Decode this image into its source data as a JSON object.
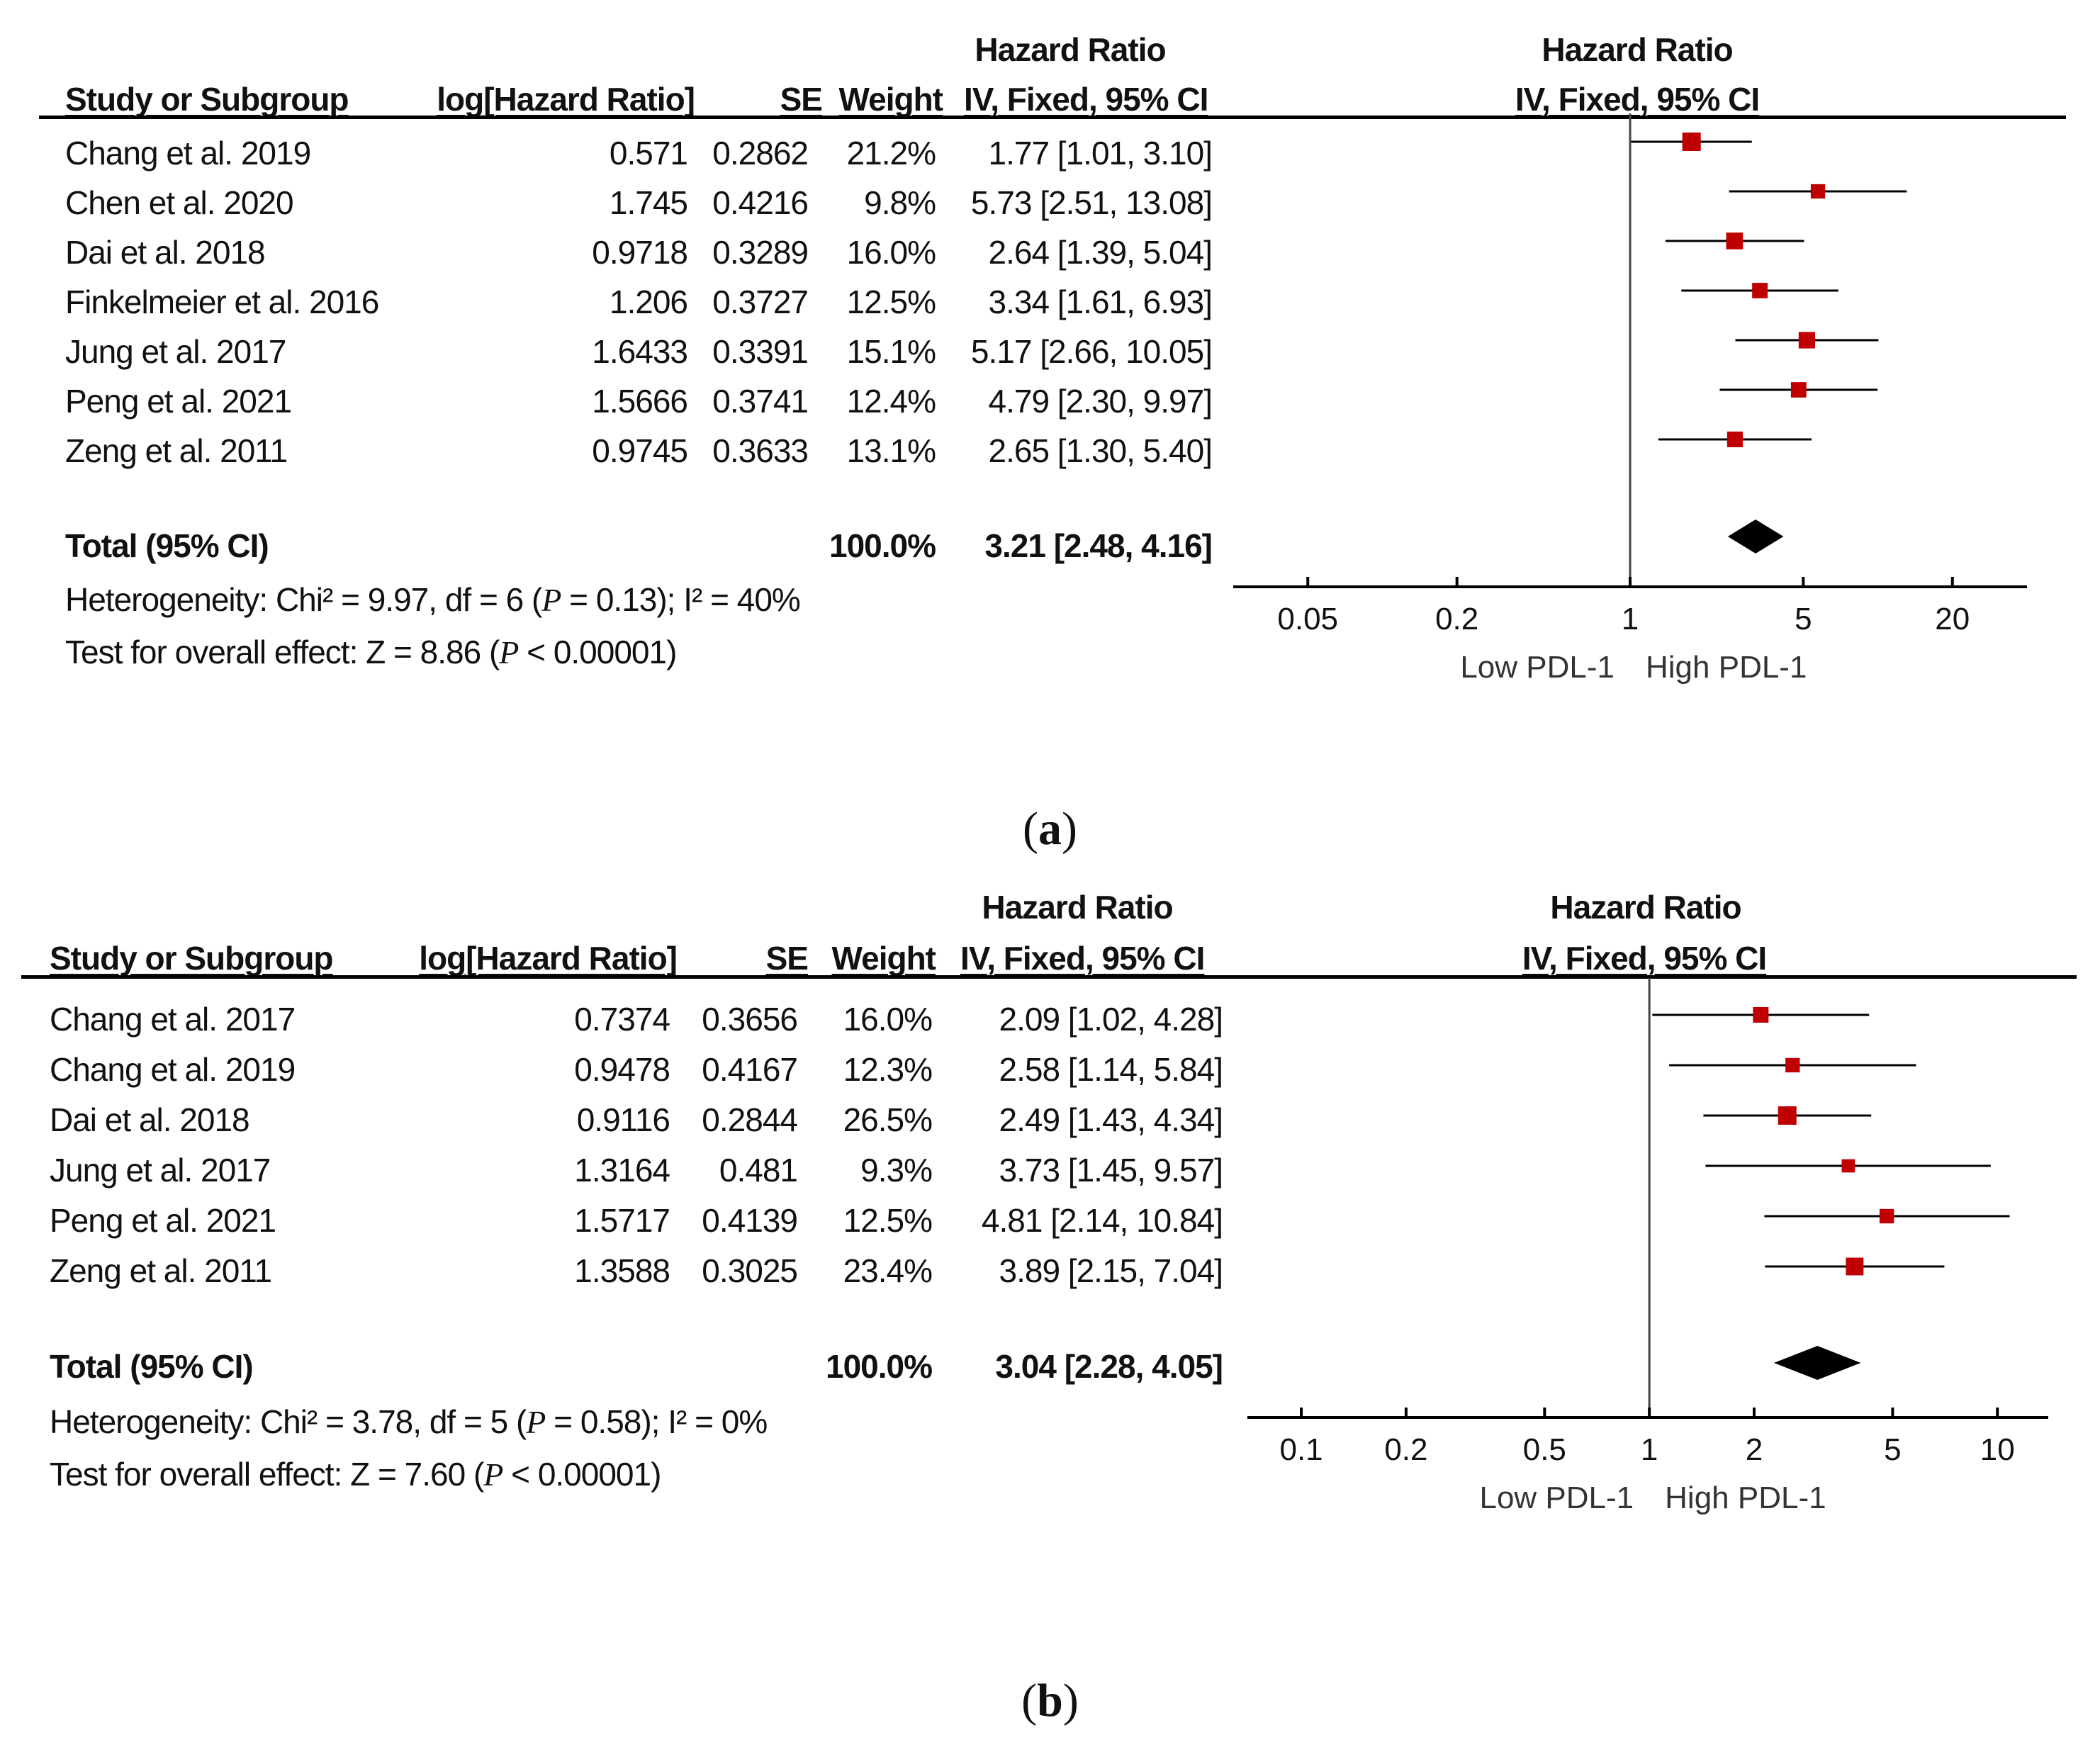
{
  "colors": {
    "marker": "#c00000",
    "ink": "#000000",
    "axis": "#444444"
  },
  "chart_data": [
    {
      "type": "forest",
      "panel_label": "a",
      "columns": {
        "study": "Study or Subgroup",
        "log_hr": "log[Hazard Ratio]",
        "se": "SE",
        "weight": "Weight",
        "hr_top": "Hazard Ratio",
        "hr_sub": "IV, Fixed, 95% CI",
        "plot_top": "Hazard Ratio",
        "plot_sub": "IV, Fixed, 95% CI"
      },
      "studies": [
        {
          "name": "Chang et al. 2019",
          "log_hr": "0.571",
          "se": "0.2862",
          "weight": "21.2%",
          "ci_text": "1.77 [1.01, 3.10]",
          "hr": 1.77,
          "lo": 1.01,
          "hi": 3.1,
          "w": 21.2
        },
        {
          "name": "Chen et al. 2020",
          "log_hr": "1.745",
          "se": "0.4216",
          "weight": "9.8%",
          "ci_text": "5.73 [2.51, 13.08]",
          "hr": 5.73,
          "lo": 2.51,
          "hi": 13.08,
          "w": 9.8
        },
        {
          "name": "Dai et al. 2018",
          "log_hr": "0.9718",
          "se": "0.3289",
          "weight": "16.0%",
          "ci_text": "2.64 [1.39, 5.04]",
          "hr": 2.64,
          "lo": 1.39,
          "hi": 5.04,
          "w": 16.0
        },
        {
          "name": "Finkelmeier et al. 2016",
          "log_hr": "1.206",
          "se": "0.3727",
          "weight": "12.5%",
          "ci_text": "3.34 [1.61, 6.93]",
          "hr": 3.34,
          "lo": 1.61,
          "hi": 6.93,
          "w": 12.5
        },
        {
          "name": "Jung et al. 2017",
          "log_hr": "1.6433",
          "se": "0.3391",
          "weight": "15.1%",
          "ci_text": "5.17 [2.66, 10.05]",
          "hr": 5.17,
          "lo": 2.66,
          "hi": 10.05,
          "w": 15.1
        },
        {
          "name": "Peng et al. 2021",
          "log_hr": "1.5666",
          "se": "0.3741",
          "weight": "12.4%",
          "ci_text": "4.79 [2.30, 9.97]",
          "hr": 4.79,
          "lo": 2.3,
          "hi": 9.97,
          "w": 12.4
        },
        {
          "name": "Zeng et al. 2011",
          "log_hr": "0.9745",
          "se": "0.3633",
          "weight": "13.1%",
          "ci_text": "2.65 [1.30, 5.40]",
          "hr": 2.65,
          "lo": 1.3,
          "hi": 5.4,
          "w": 13.1
        }
      ],
      "total": {
        "label": "Total (95% CI)",
        "weight": "100.0%",
        "ci_text": "3.21 [2.48, 4.16]",
        "hr": 3.21,
        "lo": 2.48,
        "hi": 4.16
      },
      "heterogeneity": {
        "pre": "Heterogeneity: Chi² = 9.97, df = 6 (",
        "p": "P",
        "post": " = 0.13); I² = 40%"
      },
      "overall_effect": {
        "pre": "Test for overall effect: Z = 8.86 (",
        "p": "P",
        "post": " < 0.00001)"
      },
      "x_scale": "log",
      "xlim": [
        0.025,
        40
      ],
      "x_ticks": [
        0.05,
        0.2,
        1,
        5,
        20
      ],
      "x_tick_labels": [
        "0.05",
        "0.2",
        "1",
        "5",
        "20"
      ],
      "favours_left": "Low PDL-1",
      "favours_right": "High PDL-1"
    },
    {
      "type": "forest",
      "panel_label": "b",
      "columns": {
        "study": "Study or Subgroup",
        "log_hr": "log[Hazard Ratio]",
        "se": "SE",
        "weight": "Weight",
        "hr_top": "Hazard Ratio",
        "hr_sub": "IV, Fixed, 95% CI",
        "plot_top": "Hazard Ratio",
        "plot_sub": "IV, Fixed, 95% CI"
      },
      "studies": [
        {
          "name": "Chang et al. 2017",
          "log_hr": "0.7374",
          "se": "0.3656",
          "weight": "16.0%",
          "ci_text": "2.09 [1.02, 4.28]",
          "hr": 2.09,
          "lo": 1.02,
          "hi": 4.28,
          "w": 16.0
        },
        {
          "name": "Chang et al. 2019",
          "log_hr": "0.9478",
          "se": "0.4167",
          "weight": "12.3%",
          "ci_text": "2.58 [1.14, 5.84]",
          "hr": 2.58,
          "lo": 1.14,
          "hi": 5.84,
          "w": 12.3
        },
        {
          "name": "Dai et al. 2018",
          "log_hr": "0.9116",
          "se": "0.2844",
          "weight": "26.5%",
          "ci_text": "2.49 [1.43, 4.34]",
          "hr": 2.49,
          "lo": 1.43,
          "hi": 4.34,
          "w": 26.5
        },
        {
          "name": "Jung et al. 2017",
          "log_hr": "1.3164",
          "se": "0.481",
          "weight": "9.3%",
          "ci_text": "3.73 [1.45, 9.57]",
          "hr": 3.73,
          "lo": 1.45,
          "hi": 9.57,
          "w": 9.3
        },
        {
          "name": "Peng et al. 2021",
          "log_hr": "1.5717",
          "se": "0.4139",
          "weight": "12.5%",
          "ci_text": "4.81 [2.14, 10.84]",
          "hr": 4.81,
          "lo": 2.14,
          "hi": 10.84,
          "w": 12.5
        },
        {
          "name": "Zeng et al. 2011",
          "log_hr": "1.3588",
          "se": "0.3025",
          "weight": "23.4%",
          "ci_text": "3.89 [2.15, 7.04]",
          "hr": 3.89,
          "lo": 2.15,
          "hi": 7.04,
          "w": 23.4
        }
      ],
      "total": {
        "label": "Total (95% CI)",
        "weight": "100.0%",
        "ci_text": "3.04 [2.28, 4.05]",
        "hr": 3.04,
        "lo": 2.28,
        "hi": 4.05
      },
      "heterogeneity": {
        "pre": "Heterogeneity: Chi² = 3.78, df = 5 (",
        "p": "P",
        "post": " = 0.58); I² = 0%"
      },
      "overall_effect": {
        "pre": "Test for overall effect: Z = 7.60 (",
        "p": "P",
        "post": " < 0.00001)"
      },
      "x_scale": "log",
      "xlim": [
        0.07,
        14
      ],
      "x_ticks": [
        0.1,
        0.2,
        0.5,
        1,
        2,
        5,
        10
      ],
      "x_tick_labels": [
        "0.1",
        "0.2",
        "0.5",
        "1",
        "2",
        "5",
        "10"
      ],
      "favours_left": "Low PDL-1",
      "favours_right": "High PDL-1"
    }
  ]
}
